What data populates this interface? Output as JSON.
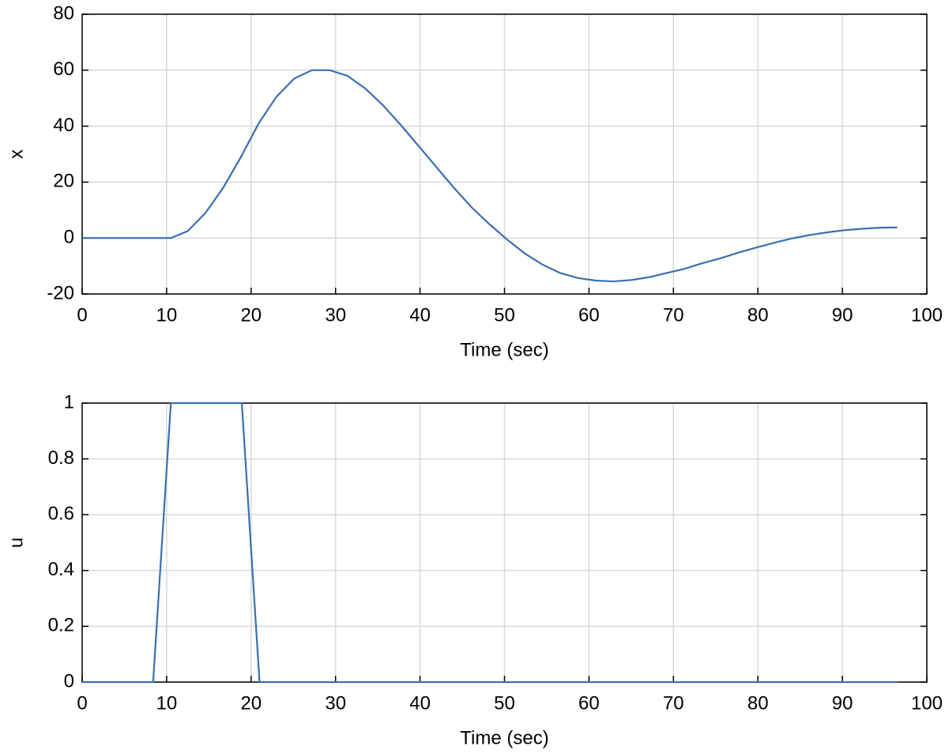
{
  "chart_data": [
    {
      "type": "line",
      "x_label": "Time (sec)",
      "y_label": "x",
      "color": "#3a6fb0",
      "grid": true,
      "x": [
        0,
        10.5,
        12.5,
        14.6,
        16.7,
        18.8,
        20.9,
        23,
        25.1,
        27.2,
        29.3,
        31.4,
        33.5,
        35.6,
        37.7,
        39.8,
        41.9,
        44,
        46.1,
        48.2,
        50.3,
        52.4,
        54.5,
        56.6,
        58.7,
        60.8,
        62.9,
        65,
        67.1,
        69.2,
        71.3,
        73.4,
        75.5,
        77.6,
        79.7,
        81.8,
        83.9,
        86,
        88.1,
        90.2,
        92.3,
        94.4,
        96.5
      ],
      "values": [
        0,
        0,
        2.5,
        9,
        18,
        29,
        41,
        50.5,
        57,
        60,
        60,
        58,
        53.5,
        47.5,
        40.5,
        33,
        25.5,
        18,
        11,
        5,
        -0.5,
        -5.5,
        -9.5,
        -12.5,
        -14.3,
        -15.2,
        -15.5,
        -15,
        -14,
        -12.5,
        -11,
        -9,
        -7.3,
        -5.3,
        -3.5,
        -1.8,
        -0.2,
        1,
        2,
        2.8,
        3.3,
        3.7,
        3.8
      ],
      "xlim": [
        0,
        100
      ],
      "xticks": [
        0,
        10,
        20,
        30,
        40,
        50,
        60,
        70,
        80,
        90,
        100
      ],
      "ylim": [
        -20,
        80
      ],
      "yticks": [
        -20,
        0,
        20,
        40,
        60,
        80
      ]
    },
    {
      "type": "line",
      "x_label": "Time (sec)",
      "y_label": "u",
      "color": "#3a6fb0",
      "grid": true,
      "x": [
        0,
        8.4,
        10.5,
        18.9,
        21,
        96.5
      ],
      "values": [
        0,
        0,
        1,
        1,
        0,
        0
      ],
      "xlim": [
        0,
        100
      ],
      "xticks": [
        0,
        10,
        20,
        30,
        40,
        50,
        60,
        70,
        80,
        90,
        100
      ],
      "ylim": [
        0,
        1
      ],
      "yticks": [
        0,
        0.2,
        0.4,
        0.6,
        0.8,
        1
      ]
    }
  ]
}
